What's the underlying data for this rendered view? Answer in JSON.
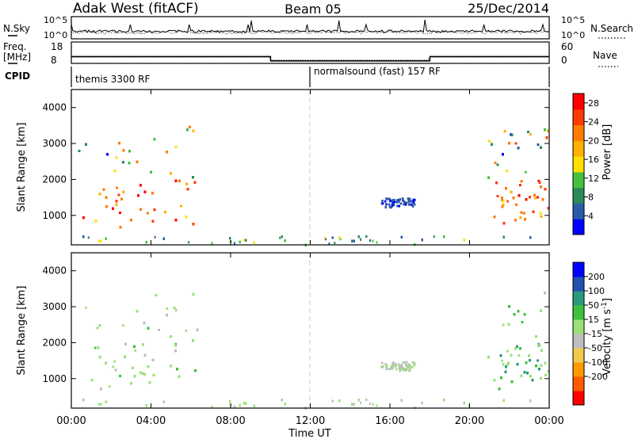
{
  "header": {
    "station": "Adak West (fitACF)",
    "beam": "Beam 05",
    "date": "25/Dec/2014"
  },
  "nsky_panel": {
    "left_label": "N.Sky",
    "y_ticks": [
      "10^5",
      "10^0"
    ],
    "right_label": "N.Search",
    "right_ticks": [
      "10^5",
      "10^0"
    ]
  },
  "freq_panel": {
    "left_label": "Freq.",
    "left_unit": "[MHz]",
    "y_ticks": [
      "18",
      "8"
    ],
    "right_label": "Nave",
    "right_ticks": [
      "60",
      "0"
    ]
  },
  "cpid_panel": {
    "label": "CPID",
    "segments": [
      {
        "start_hour": 0,
        "name": "themis 3300 RF"
      },
      {
        "start_hour": 12,
        "name": "normalsound (fast) 157 RF"
      }
    ]
  },
  "power_panel": {
    "ylabel": "Slant Range [km]",
    "y_ticks": [
      "1000",
      "2000",
      "3000",
      "4000"
    ],
    "colorbar_label": "Power [dB]",
    "colorbar_ticks": [
      "4",
      "8",
      "12",
      "16",
      "20",
      "24",
      "28"
    ]
  },
  "velocity_panel": {
    "ylabel": "Slant Range [km]",
    "y_ticks": [
      "1000",
      "2000",
      "3000",
      "4000"
    ],
    "colorbar_label": "Velocity [m s",
    "colorbar_label_sup": "-1",
    "colorbar_label_end": "]",
    "colorbar_ticks": [
      "200",
      "100",
      "50",
      "15",
      "-15",
      "-50",
      "-100",
      "-200"
    ]
  },
  "x_axis": {
    "label": "Time UT",
    "ticks": [
      "00:00",
      "04:00",
      "08:00",
      "12:00",
      "16:00",
      "20:00",
      "00:00"
    ]
  },
  "chart_data": [
    {
      "type": "heatmap",
      "title": "Power",
      "x_unit": "hours UT",
      "y_unit": "km",
      "xlim": [
        0,
        24
      ],
      "ylim": [
        180,
        4500
      ],
      "colorbar": {
        "label": "Power [dB]",
        "range": [
          0,
          30
        ],
        "ticks": [
          4,
          8,
          12,
          16,
          20,
          24,
          28
        ]
      },
      "regions": [
        {
          "name": "morning echoes",
          "x": [
            0.2,
            6.3
          ],
          "y": [
            700,
            3500
          ],
          "power_db": [
            2,
            30
          ]
        },
        {
          "name": "midday patch",
          "x": [
            15.5,
            17.2
          ],
          "y": [
            1250,
            1500
          ],
          "power_db": [
            2,
            6
          ]
        },
        {
          "name": "evening echoes",
          "x": [
            20.8,
            24
          ],
          "y": [
            700,
            3500
          ],
          "power_db": [
            2,
            30
          ]
        },
        {
          "name": "near-range ground scatter",
          "x": [
            0,
            24
          ],
          "y": [
            200,
            450
          ],
          "power_db": [
            2,
            16
          ]
        }
      ]
    },
    {
      "type": "heatmap",
      "title": "Velocity",
      "x_unit": "hours UT",
      "y_unit": "km",
      "xlim": [
        0,
        24
      ],
      "ylim": [
        180,
        4500
      ],
      "colorbar": {
        "label": "Velocity [m s-1]",
        "ticks": [
          200,
          100,
          50,
          15,
          -15,
          -50,
          -100,
          -200
        ]
      },
      "regions": [
        {
          "name": "morning echoes",
          "x": [
            0.2,
            6.3
          ],
          "y": [
            700,
            3500
          ],
          "velocity": [
            -50,
            50
          ]
        },
        {
          "name": "midday patch",
          "x": [
            15.5,
            17.2
          ],
          "y": [
            1250,
            1500
          ],
          "velocity": [
            -50,
            15
          ]
        },
        {
          "name": "evening echoes",
          "x": [
            20.8,
            24
          ],
          "y": [
            700,
            3500
          ],
          "velocity": [
            -15,
            200
          ]
        },
        {
          "name": "near-range ground scatter",
          "x": [
            0,
            24
          ],
          "y": [
            200,
            450
          ],
          "velocity": [
            -50,
            15
          ]
        }
      ]
    },
    {
      "type": "line",
      "title": "Freq. [MHz]",
      "x": [
        0,
        10,
        10.01,
        18,
        18.01,
        24
      ],
      "y": [
        11.2,
        11.2,
        9.2,
        9.2,
        11.2,
        11.2
      ],
      "ylim": [
        8,
        18
      ]
    }
  ],
  "colors": {
    "power_scale": [
      "#0000ff",
      "#2a5aa8",
      "#2b8a5a",
      "#45c13e",
      "#ffe000",
      "#ffb000",
      "#ff7a00",
      "#ff3a00",
      "#ff0000"
    ],
    "velocity_scale": [
      "#ff0000",
      "#ff5a00",
      "#ff9900",
      "#f2c94c",
      "#bebebe",
      "#9be07a",
      "#3cc23c",
      "#2a9a7a",
      "#2050b0",
      "#0000ff"
    ],
    "dashed_noon": "#c8c8c8"
  }
}
